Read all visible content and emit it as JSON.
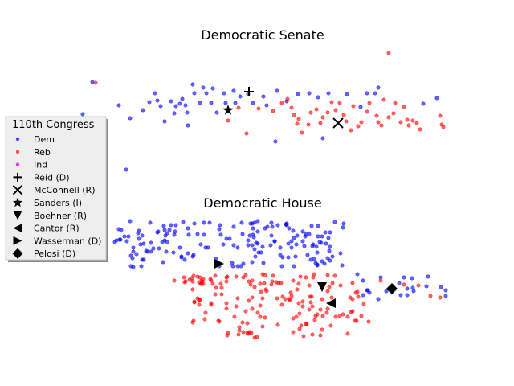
{
  "colors": {
    "dem": "#0000ff",
    "reb": "#ff0000",
    "ind": "#bf00bf"
  },
  "chart_data": [
    {
      "type": "scatter",
      "title": "Democratic Senate",
      "xlabel": "",
      "ylabel": "",
      "series": [
        {
          "name": "Dem",
          "color": "#0000ff",
          "points": [
            [
              103,
              142
            ],
            [
              115,
              102
            ],
            [
              148,
              131
            ],
            [
              157,
              211
            ],
            [
              162,
              147
            ],
            [
              178,
              137
            ],
            [
              186,
              127
            ],
            [
              193,
              116
            ],
            [
              196,
              125
            ],
            [
              200,
              132
            ],
            [
              205,
              151
            ],
            [
              213,
              126
            ],
            [
              217,
              141
            ],
            [
              219,
              132
            ],
            [
              224,
              129
            ],
            [
              227,
              123
            ],
            [
              231,
              131
            ],
            [
              233,
              140
            ],
            [
              234,
              156
            ],
            [
              240,
              105
            ],
            [
              242,
              116
            ],
            [
              249,
              128
            ],
            [
              253,
              109
            ],
            [
              257,
              116
            ],
            [
              263,
              128
            ],
            [
              265,
              110
            ],
            [
              270,
              140
            ],
            [
              279,
              116
            ],
            [
              281,
              128
            ],
            [
              291,
              113
            ],
            [
              293,
              128
            ],
            [
              299,
              120
            ],
            [
              309,
              117
            ],
            [
              315,
              128
            ],
            [
              328,
              120
            ],
            [
              332,
              131
            ],
            [
              345,
              113
            ],
            [
              343,
              176
            ],
            [
              357,
              126
            ],
            [
              371,
              117
            ],
            [
              385,
              116
            ],
            [
              396,
              121
            ],
            [
              402,
              172
            ],
            [
              409,
              116
            ],
            [
              432,
              117
            ],
            [
              449,
              133
            ],
            [
              457,
              116
            ],
            [
              467,
              116
            ],
            [
              471,
              109
            ],
            [
              527,
              129
            ],
            [
              544,
              122
            ]
          ]
        },
        {
          "name": "Reb",
          "color": "#ff0000",
          "points": [
            [
              119,
              103
            ],
            [
              484,
              66
            ],
            [
              284,
              150
            ],
            [
              297,
              134
            ],
            [
              307,
              166
            ],
            [
              322,
              135
            ],
            [
              340,
              138
            ],
            [
              351,
              128
            ],
            [
              358,
              123
            ],
            [
              363,
              134
            ],
            [
              366,
              143
            ],
            [
              370,
              154
            ],
            [
              372,
              148
            ],
            [
              376,
              165
            ],
            [
              384,
              155
            ],
            [
              387,
              140
            ],
            [
              394,
              136
            ],
            [
              399,
              153
            ],
            [
              402,
              146
            ],
            [
              408,
              140
            ],
            [
              413,
              127
            ],
            [
              418,
              137
            ],
            [
              423,
              128
            ],
            [
              428,
              143
            ],
            [
              431,
              151
            ],
            [
              437,
              162
            ],
            [
              440,
              132
            ],
            [
              446,
              157
            ],
            [
              450,
              152
            ],
            [
              457,
              139
            ],
            [
              460,
              128
            ],
            [
              469,
              144
            ],
            [
              471,
              152
            ],
            [
              475,
              156
            ],
            [
              478,
              124
            ],
            [
              484,
              146
            ],
            [
              490,
              141
            ],
            [
              492,
              128
            ],
            [
              499,
              152
            ],
            [
              503,
              133
            ],
            [
              507,
              149
            ],
            [
              509,
              156
            ],
            [
              514,
              150
            ],
            [
              519,
              153
            ],
            [
              523,
              161
            ],
            [
              548,
              144
            ],
            [
              550,
              155
            ],
            [
              552,
              158
            ]
          ]
        },
        {
          "name": "Ind",
          "color": "#bf00bf",
          "points": []
        }
      ],
      "leaders": [
        {
          "name": "Reid (D)",
          "marker": "plus",
          "point": [
            310,
            114
          ]
        },
        {
          "name": "McConnell (R)",
          "marker": "x",
          "point": [
            421,
            153
          ]
        },
        {
          "name": "Sanders (I)",
          "marker": "star",
          "point": [
            284,
            137
          ]
        }
      ]
    },
    {
      "type": "scatter",
      "title": "Democratic House",
      "xlabel": "",
      "ylabel": "",
      "series": [
        {
          "name": "Dem",
          "color": "#0000ff",
          "points": []
        },
        {
          "name": "Reb",
          "color": "#ff0000",
          "points": []
        },
        {
          "name": "Ind",
          "color": "#bf00bf",
          "points": []
        }
      ],
      "leaders": [
        {
          "name": "Boehner (R)",
          "marker": "triangle-down",
          "point": [
            401,
            357
          ]
        },
        {
          "name": "Cantor (R)",
          "marker": "triangle-left",
          "point": [
            412,
            377
          ]
        },
        {
          "name": "Wasserman (D)",
          "marker": "triangle-right",
          "point": [
            273,
            328
          ]
        },
        {
          "name": "Pelosi (D)",
          "marker": "diamond",
          "point": [
            488,
            359
          ]
        }
      ]
    }
  ],
  "legend": {
    "title": "110th Congress",
    "entries": [
      {
        "label": "Dem",
        "marker": "dot",
        "color": "#0000ff"
      },
      {
        "label": "Reb",
        "marker": "dot",
        "color": "#ff0000"
      },
      {
        "label": "Ind",
        "marker": "dot",
        "color": "#bf00bf"
      },
      {
        "label": "Reid (D)",
        "marker": "plus",
        "color": "#000000"
      },
      {
        "label": "McConnell (R)",
        "marker": "x",
        "color": "#000000"
      },
      {
        "label": "Sanders (I)",
        "marker": "star",
        "color": "#000000"
      },
      {
        "label": "Boehner (R)",
        "marker": "triangle-down",
        "color": "#000000"
      },
      {
        "label": "Cantor (R)",
        "marker": "triangle-left",
        "color": "#000000"
      },
      {
        "label": "Wasserman (D)",
        "marker": "triangle-right",
        "color": "#000000"
      },
      {
        "label": "Pelosi (D)",
        "marker": "diamond",
        "color": "#000000"
      }
    ]
  }
}
